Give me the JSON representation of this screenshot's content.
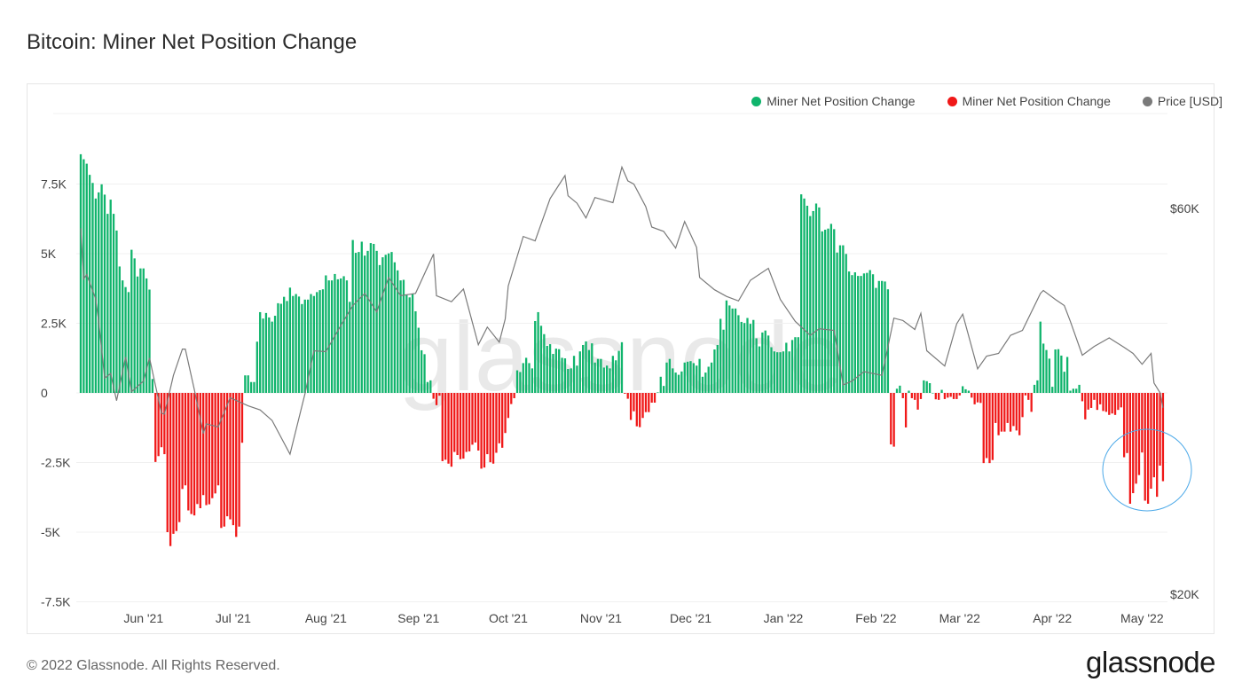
{
  "title": "Bitcoin: Miner Net Position Change",
  "footer": "© 2022 Glassnode. All Rights Reserved.",
  "logo": "glassnode",
  "watermark": "glassnode",
  "colors": {
    "positive": "#10b46c",
    "negative": "#f01818",
    "price": "#7a7a7a",
    "annotation": "#4aa8e8"
  },
  "legend": [
    {
      "label": "Miner Net Position Change",
      "color": "#10b46c"
    },
    {
      "label": "Miner Net Position Change",
      "color": "#f01818"
    },
    {
      "label": "Price [USD]",
      "color": "#7a7a7a"
    }
  ],
  "chart_data": {
    "type": "bar",
    "start_date": "2021-05-11",
    "end_date": "2022-05-08",
    "x_tick_labels": [
      "Jun '21",
      "Jul '21",
      "Aug '21",
      "Sep '21",
      "Oct '21",
      "Nov '21",
      "Dec '21",
      "Jan '22",
      "Feb '22",
      "Mar '22",
      "Apr '22",
      "May '22"
    ],
    "y_left": {
      "ticks": [
        7500,
        5000,
        2500,
        0,
        -2500,
        -5000,
        -7500
      ],
      "labels": [
        "7.5K",
        "5K",
        "2.5K",
        "0",
        "-2.5K",
        "-5K",
        "-7.5K"
      ],
      "range": [
        -8000,
        9000
      ]
    },
    "y_right": {
      "scale": "log",
      "ticks": [
        60000,
        20000
      ],
      "labels": [
        "$60K",
        "$20K"
      ]
    },
    "grid": true,
    "legend_position": "top-right",
    "series": [
      {
        "name": "Miner Net Position Change",
        "type": "bar",
        "unit": "BTC",
        "values": [
          8570,
          8390,
          8230,
          7830,
          7540,
          6980,
          7200,
          7490,
          7120,
          6430,
          6940,
          6430,
          5830,
          4540,
          4040,
          3800,
          3620,
          5140,
          4830,
          4180,
          4470,
          4470,
          4110,
          3710,
          500,
          -2480,
          -2270,
          -1950,
          -2200,
          -5000,
          -5500,
          -5060,
          -4960,
          -4640,
          -3450,
          -3320,
          -4220,
          -4350,
          -4400,
          -3990,
          -4140,
          -3670,
          -4030,
          -4000,
          -3780,
          -3610,
          -3320,
          -4850,
          -4800,
          -4430,
          -4540,
          -4750,
          -5170,
          -4800,
          -1790,
          630,
          630,
          390,
          390,
          1840,
          2900,
          2670,
          2870,
          2710,
          2560,
          2770,
          3220,
          3200,
          3450,
          3300,
          3780,
          3480,
          3550,
          3460,
          3190,
          3350,
          3350,
          3550,
          3480,
          3620,
          3690,
          3720,
          4220,
          4040,
          4040,
          4270,
          4080,
          4110,
          4190,
          4040,
          3270,
          5490,
          5030,
          5060,
          5430,
          4930,
          5100,
          5380,
          5350,
          5100,
          4590,
          4870,
          4960,
          5010,
          5060,
          4690,
          4400,
          4040,
          4060,
          3530,
          3430,
          3550,
          2930,
          2340,
          1530,
          1390,
          390,
          450,
          -210,
          -440,
          -100,
          -2450,
          -2400,
          -2540,
          -2650,
          -2120,
          -2230,
          -2380,
          -2360,
          -2120,
          -2100,
          -1860,
          -1780,
          -2070,
          -2720,
          -2680,
          -2200,
          -2490,
          -2540,
          -2150,
          -1810,
          -1970,
          -1440,
          -900,
          -400,
          -190,
          810,
          750,
          1070,
          1260,
          1070,
          880,
          2580,
          2900,
          2410,
          2110,
          1690,
          1750,
          1400,
          1590,
          1570,
          1260,
          1240,
          860,
          880,
          1330,
          980,
          1490,
          1720,
          1850,
          1540,
          1780,
          1090,
          1220,
          1220,
          910,
          980,
          880,
          1330,
          1170,
          1510,
          1820,
          -30,
          -210,
          -970,
          -660,
          -1200,
          -1230,
          -900,
          -690,
          -690,
          -350,
          -350,
          20,
          580,
          250,
          1090,
          1220,
          880,
          730,
          650,
          770,
          1090,
          1120,
          1140,
          1070,
          980,
          1220,
          580,
          730,
          940,
          1090,
          1560,
          1720,
          2660,
          2270,
          3320,
          3140,
          3030,
          3030,
          2790,
          2550,
          2510,
          2690,
          2480,
          2620,
          1960,
          1670,
          2170,
          2240,
          2060,
          1640,
          1490,
          1460,
          1460,
          1490,
          1800,
          1490,
          1900,
          2000,
          2000,
          7130,
          6980,
          6720,
          6350,
          6530,
          6800,
          6660,
          5800,
          5860,
          5900,
          6070,
          5880,
          5040,
          5300,
          5300,
          4990,
          4360,
          4230,
          4330,
          4200,
          4200,
          4290,
          4310,
          4410,
          4260,
          3770,
          4020,
          4020,
          4000,
          3720,
          -1850,
          -1930,
          150,
          260,
          -190,
          -1240,
          80,
          -190,
          -250,
          -600,
          -220,
          450,
          420,
          350,
          0,
          -230,
          -250,
          110,
          -220,
          -170,
          -140,
          -220,
          -220,
          -90,
          240,
          130,
          80,
          -170,
          -410,
          -340,
          -360,
          -2520,
          -2340,
          -2520,
          -2410,
          -1080,
          -1520,
          -1390,
          -1390,
          -1080,
          -1390,
          -1190,
          -1350,
          -1520,
          -870,
          -90,
          -250,
          -680,
          290,
          450,
          2560,
          1770,
          1540,
          1230,
          220,
          1560,
          1570,
          1340,
          760,
          1290,
          80,
          150,
          150,
          290,
          -300,
          -950,
          -600,
          -540,
          -250,
          -610,
          -410,
          -650,
          -680,
          -790,
          -740,
          -790,
          -610,
          -520,
          -2310,
          -2160,
          -3980,
          -3600,
          -3260,
          -2950,
          -2140,
          -3870,
          -3980,
          -3440,
          -3030,
          -3730,
          -2610,
          -3170
        ]
      },
      {
        "name": "Price [USD]",
        "type": "line",
        "unit": "USD",
        "points": [
          [
            "2021-05-11",
            56700
          ],
          [
            "2021-05-12",
            49100
          ],
          [
            "2021-05-13",
            49700
          ],
          [
            "2021-05-16",
            46400
          ],
          [
            "2021-05-17",
            43500
          ],
          [
            "2021-05-19",
            37000
          ],
          [
            "2021-05-21",
            37500
          ],
          [
            "2021-05-23",
            34700
          ],
          [
            "2021-05-26",
            39300
          ],
          [
            "2021-05-28",
            35600
          ],
          [
            "2021-06-01",
            36700
          ],
          [
            "2021-06-03",
            39200
          ],
          [
            "2021-06-07",
            33500
          ],
          [
            "2021-06-08",
            33400
          ],
          [
            "2021-06-11",
            37300
          ],
          [
            "2021-06-14",
            40200
          ],
          [
            "2021-06-15",
            40200
          ],
          [
            "2021-06-18",
            35800
          ],
          [
            "2021-06-21",
            31600
          ],
          [
            "2021-06-22",
            32500
          ],
          [
            "2021-06-26",
            32200
          ],
          [
            "2021-06-30",
            35000
          ],
          [
            "2021-07-06",
            34200
          ],
          [
            "2021-07-10",
            33800
          ],
          [
            "2021-07-14",
            32800
          ],
          [
            "2021-07-20",
            29800
          ],
          [
            "2021-07-25",
            35400
          ],
          [
            "2021-07-28",
            40000
          ],
          [
            "2021-08-01",
            39900
          ],
          [
            "2021-08-06",
            43000
          ],
          [
            "2021-08-10",
            45500
          ],
          [
            "2021-08-14",
            47100
          ],
          [
            "2021-08-18",
            44700
          ],
          [
            "2021-08-22",
            49300
          ],
          [
            "2021-08-26",
            46800
          ],
          [
            "2021-08-31",
            47100
          ],
          [
            "2021-09-06",
            52700
          ],
          [
            "2021-09-07",
            46800
          ],
          [
            "2021-09-12",
            46000
          ],
          [
            "2021-09-16",
            47700
          ],
          [
            "2021-09-21",
            40700
          ],
          [
            "2021-09-24",
            42800
          ],
          [
            "2021-09-28",
            41000
          ],
          [
            "2021-09-30",
            43800
          ],
          [
            "2021-10-01",
            48100
          ],
          [
            "2021-10-06",
            55400
          ],
          [
            "2021-10-10",
            54700
          ],
          [
            "2021-10-15",
            61700
          ],
          [
            "2021-10-20",
            65900
          ],
          [
            "2021-10-21",
            62200
          ],
          [
            "2021-10-24",
            60900
          ],
          [
            "2021-10-27",
            58400
          ],
          [
            "2021-10-30",
            61900
          ],
          [
            "2021-11-05",
            61000
          ],
          [
            "2021-11-08",
            67500
          ],
          [
            "2021-11-10",
            64900
          ],
          [
            "2021-11-12",
            64300
          ],
          [
            "2021-11-16",
            60300
          ],
          [
            "2021-11-18",
            56900
          ],
          [
            "2021-11-22",
            56200
          ],
          [
            "2021-11-26",
            53600
          ],
          [
            "2021-11-29",
            57800
          ],
          [
            "2021-12-03",
            53700
          ],
          [
            "2021-12-04",
            49300
          ],
          [
            "2021-12-09",
            47600
          ],
          [
            "2021-12-13",
            46700
          ],
          [
            "2021-12-17",
            46100
          ],
          [
            "2021-12-21",
            48900
          ],
          [
            "2021-12-27",
            50600
          ],
          [
            "2021-12-31",
            46300
          ],
          [
            "2022-01-05",
            43500
          ],
          [
            "2022-01-10",
            41800
          ],
          [
            "2022-01-13",
            42600
          ],
          [
            "2022-01-18",
            42400
          ],
          [
            "2022-01-21",
            36300
          ],
          [
            "2022-01-24",
            36700
          ],
          [
            "2022-01-28",
            37700
          ],
          [
            "2022-02-03",
            37300
          ],
          [
            "2022-02-07",
            43900
          ],
          [
            "2022-02-10",
            43600
          ],
          [
            "2022-02-14",
            42500
          ],
          [
            "2022-02-16",
            44500
          ],
          [
            "2022-02-18",
            40000
          ],
          [
            "2022-02-24",
            38300
          ],
          [
            "2022-02-28",
            43200
          ],
          [
            "2022-03-02",
            44400
          ],
          [
            "2022-03-07",
            38000
          ],
          [
            "2022-03-10",
            39400
          ],
          [
            "2022-03-14",
            39700
          ],
          [
            "2022-03-18",
            41800
          ],
          [
            "2022-03-22",
            42400
          ],
          [
            "2022-03-28",
            47100
          ],
          [
            "2022-03-29",
            47500
          ],
          [
            "2022-04-02",
            46300
          ],
          [
            "2022-04-05",
            45500
          ],
          [
            "2022-04-07",
            43500
          ],
          [
            "2022-04-11",
            39500
          ],
          [
            "2022-04-15",
            40500
          ],
          [
            "2022-04-20",
            41500
          ],
          [
            "2022-04-25",
            40400
          ],
          [
            "2022-04-28",
            39700
          ],
          [
            "2022-05-01",
            38500
          ],
          [
            "2022-05-04",
            39700
          ],
          [
            "2022-05-05",
            36500
          ],
          [
            "2022-05-07",
            35500
          ],
          [
            "2022-05-08",
            34000
          ]
        ]
      }
    ]
  }
}
